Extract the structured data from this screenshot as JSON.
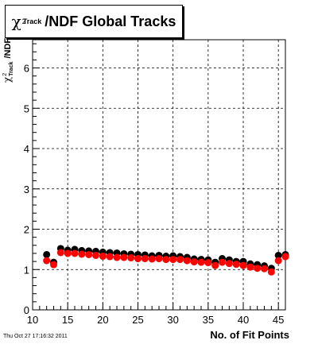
{
  "header": {
    "title_suffix": "/NDF  Global Tracks",
    "chi_symbol": "χ",
    "chi_sup": "2",
    "chi_sub": "Track"
  },
  "axes": {
    "ylabel_suffix": "/NDF",
    "xlabel": "No. of Fit Points"
  },
  "footer": {
    "timestamp": "Thu Oct 27 17:16:32 2011"
  },
  "colors": {
    "series_black": "#000000",
    "series_red": "#ff0000",
    "grid": "#000000"
  },
  "chart_data": {
    "type": "scatter",
    "title": "χ2Track/NDF  Global Tracks",
    "xlabel": "No. of Fit Points",
    "ylabel": "χ2Track/NDF",
    "xlim": [
      10,
      46
    ],
    "ylim": [
      0,
      6.7
    ],
    "grid": true,
    "x_ticks": [
      10,
      15,
      20,
      25,
      30,
      35,
      40,
      45
    ],
    "y_ticks": [
      0,
      1,
      2,
      3,
      4,
      5,
      6
    ],
    "x": [
      12,
      13,
      14,
      15,
      16,
      17,
      18,
      19,
      20,
      21,
      22,
      23,
      24,
      25,
      26,
      27,
      28,
      29,
      30,
      31,
      32,
      33,
      34,
      35,
      36,
      37,
      38,
      39,
      40,
      41,
      42,
      43,
      44,
      45,
      46
    ],
    "series": [
      {
        "color": "black",
        "values": [
          1.37,
          1.18,
          1.52,
          1.48,
          1.5,
          1.47,
          1.46,
          1.45,
          1.43,
          1.42,
          1.41,
          1.39,
          1.38,
          1.37,
          1.36,
          1.34,
          1.35,
          1.33,
          1.34,
          1.32,
          1.3,
          1.26,
          1.25,
          1.24,
          1.18,
          1.27,
          1.24,
          1.2,
          1.2,
          1.14,
          1.12,
          1.09,
          1.03,
          1.35,
          1.37
        ]
      },
      {
        "color": "red",
        "values": [
          1.22,
          1.12,
          1.42,
          1.4,
          1.4,
          1.38,
          1.37,
          1.35,
          1.33,
          1.32,
          1.3,
          1.3,
          1.29,
          1.27,
          1.27,
          1.26,
          1.27,
          1.25,
          1.25,
          1.25,
          1.22,
          1.19,
          1.18,
          1.17,
          1.1,
          1.18,
          1.15,
          1.13,
          1.1,
          1.06,
          1.03,
          1.02,
          0.94,
          1.22,
          1.32
        ]
      }
    ]
  }
}
